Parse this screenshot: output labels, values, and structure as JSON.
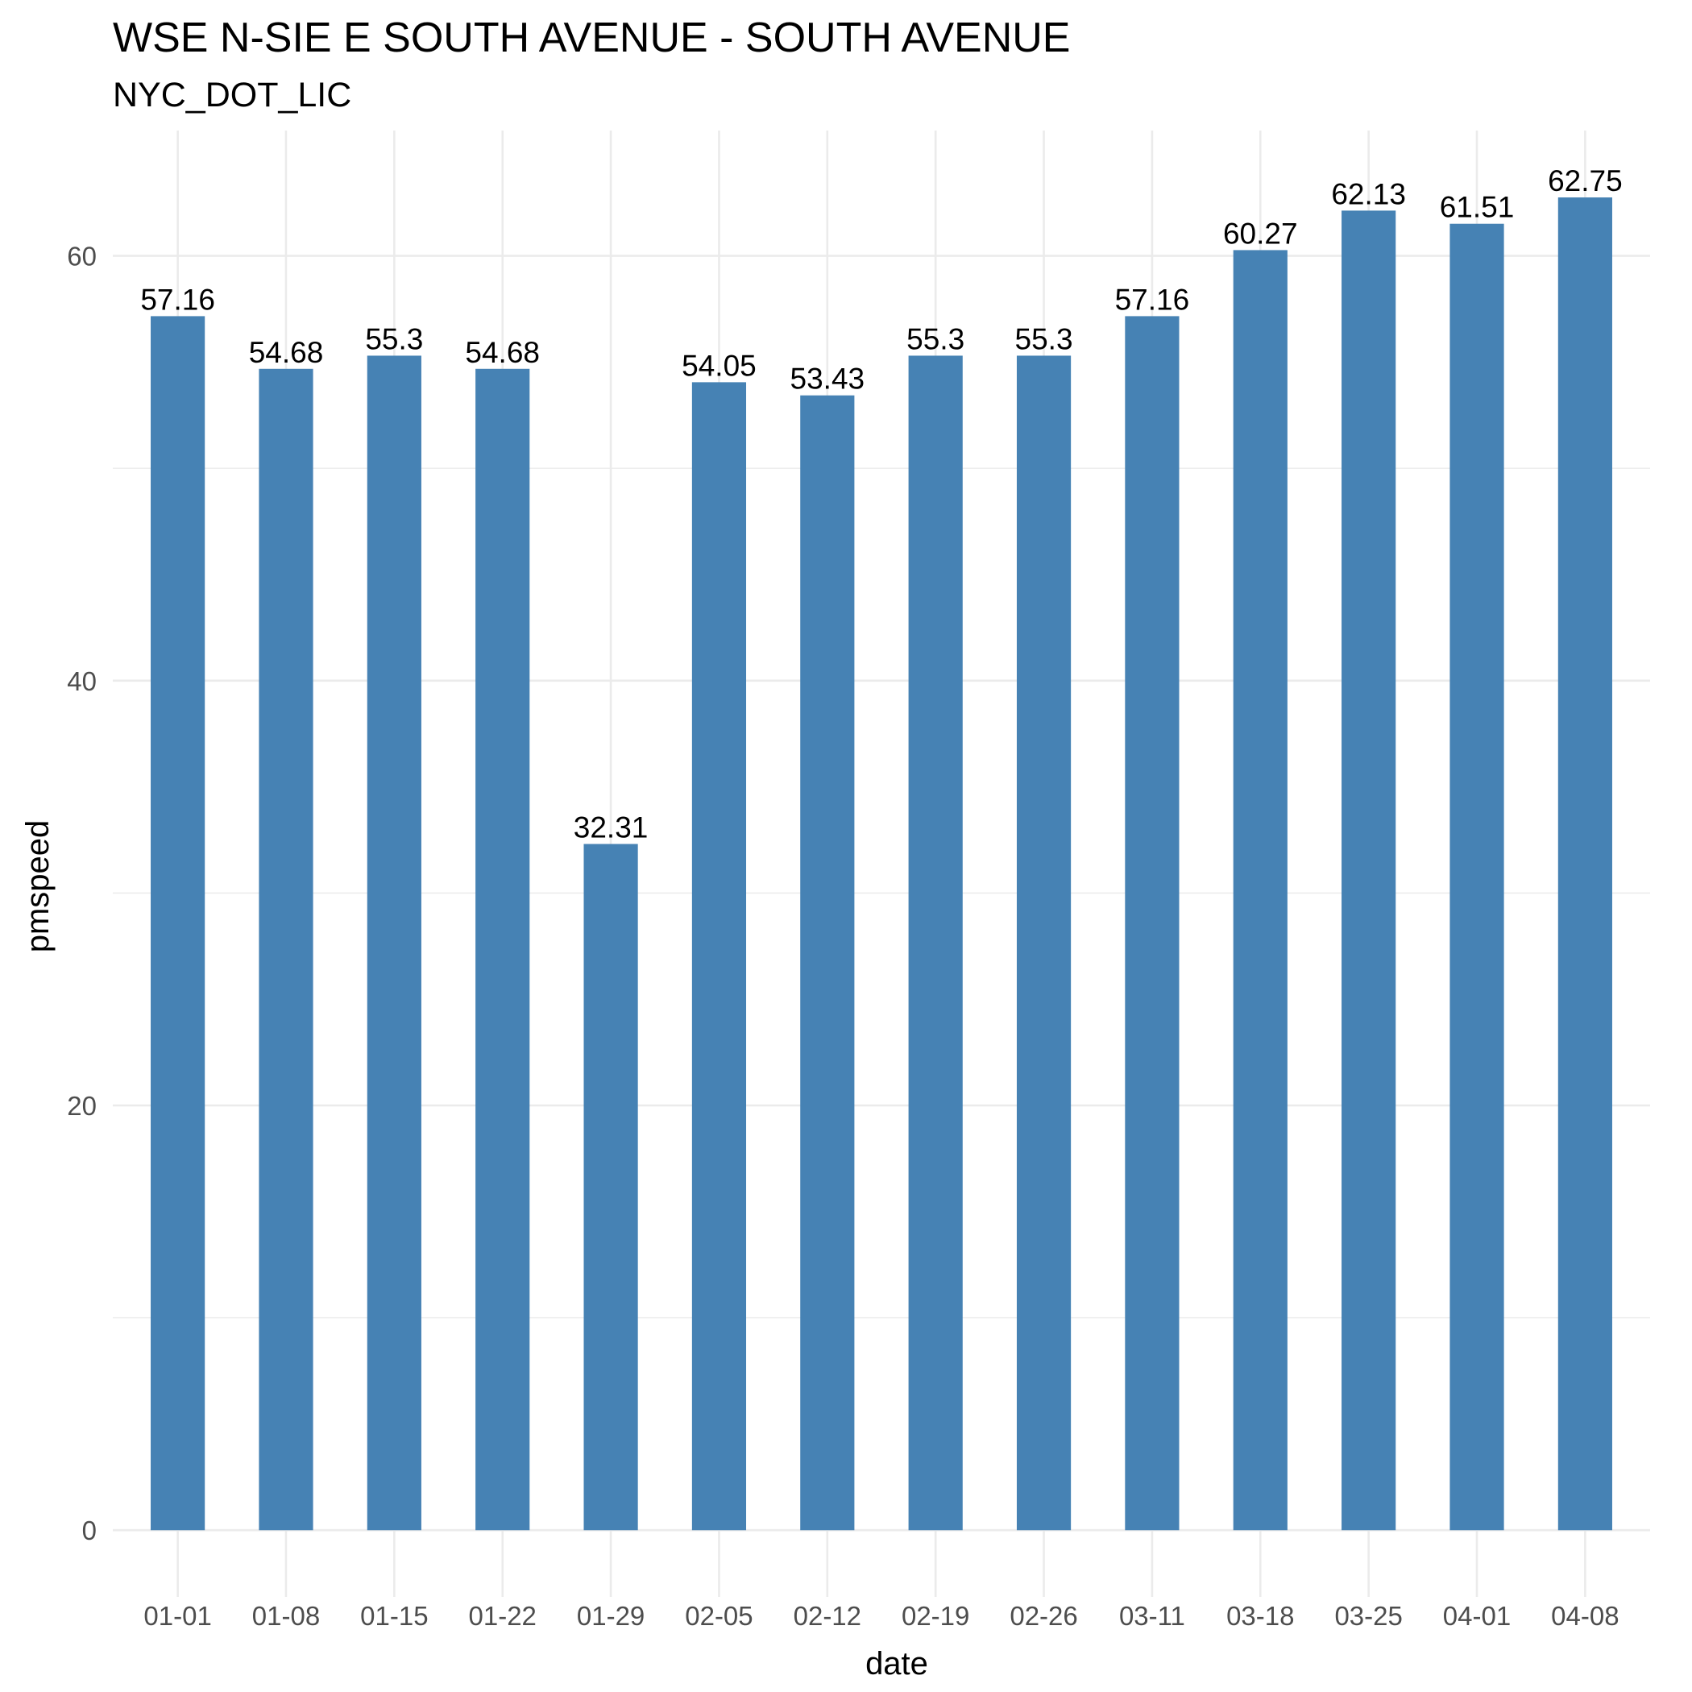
{
  "chart_data": {
    "type": "bar",
    "title": "WSE N-SIE E SOUTH AVENUE - SOUTH AVENUE",
    "subtitle": "NYC_DOT_LIC",
    "xlabel": "date",
    "ylabel": "pmspeed",
    "categories": [
      "01-01",
      "01-08",
      "01-15",
      "01-22",
      "01-29",
      "02-05",
      "02-12",
      "02-19",
      "02-26",
      "03-11",
      "03-18",
      "03-25",
      "04-01",
      "04-08"
    ],
    "values": [
      57.16,
      54.68,
      55.3,
      54.68,
      32.31,
      54.05,
      53.43,
      55.3,
      55.3,
      57.16,
      60.27,
      62.13,
      61.51,
      62.75
    ],
    "data_labels": [
      "57.16",
      "54.68",
      "55.3",
      "54.68",
      "32.31",
      "54.05",
      "53.43",
      "55.3",
      "55.3",
      "57.16",
      "60.27",
      "62.13",
      "61.51",
      "62.75"
    ],
    "ylim": [
      -3.14,
      65.9
    ],
    "yticks": [
      0,
      20,
      40,
      60
    ],
    "ytick_labels": [
      "0",
      "20",
      "40",
      "60"
    ],
    "grid": true,
    "legend": "none",
    "bar_color": "#4682B4"
  }
}
